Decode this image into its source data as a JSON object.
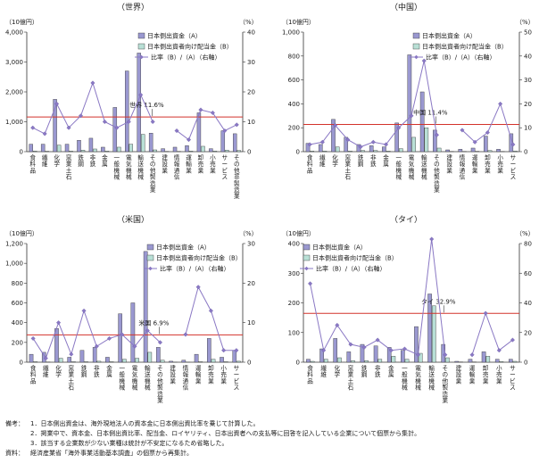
{
  "colors": {
    "funds": "#9a98d0",
    "dividends": "#b9e0d6",
    "ratio": "#8a78c4",
    "refline": "#d3332b",
    "axis": "#333333"
  },
  "categories": [
    "食料品",
    "繊維",
    "化学",
    "窯業土石",
    "鉄鋼",
    "非鉄",
    "金属",
    "一般機械",
    "電気機械",
    "輸送機械",
    "その他製造業",
    "建設業",
    "情報通信",
    "運輸業",
    "卸売業",
    "小売業",
    "サービス",
    "その他非製造業"
  ],
  "legend": {
    "funds": "日本側出資金（A）",
    "dividends": "日本側出資者向け配当金（B）",
    "ratio": "比率（B）/（A）（右軸）"
  },
  "notes": {
    "label_notes": "備考：",
    "note1": "1．日本側出資金は、海外現地法人の資本金に日本側出資比率を乗じて計算した。",
    "note2": "2．掲業中で、資本金、日本側出資比率、配当金、ロイヤリティ、日本出資者への支払等に回答を記入している企業について個票から集計。",
    "note3": "3．該当する企業数が少ない業種は統計が不安定になるため省略した。",
    "label_source": "資料：",
    "source": "経済産業省「海外事業活動基本調査」の個票から再集計。"
  },
  "chart_data": [
    {
      "type": "bar",
      "title": "（世界）",
      "ylabel": "（10億円）",
      "y2label": "（%）",
      "ylim": [
        0,
        4000
      ],
      "yticks": [
        0,
        1000,
        2000,
        3000,
        4000
      ],
      "y2lim": [
        0,
        40
      ],
      "y2ticks": [
        0,
        10,
        20,
        30,
        40
      ],
      "ref_value": 11.6,
      "ref_label": "世界 11.6%",
      "categories": [
        "食料品",
        "繊維",
        "化学",
        "窯業土石",
        "鉄鋼",
        "非鉄",
        "金属",
        "一般機械",
        "電気機械",
        "輸送機械",
        "その他製造業",
        "建設業",
        "情報通信",
        "運輸業",
        "卸売業",
        "小売業",
        "サービス",
        "その他非製造業"
      ],
      "series": [
        {
          "name": "日本側出資金（A）",
          "values": [
            250,
            250,
            1750,
            250,
            380,
            450,
            150,
            1480,
            2700,
            3300,
            620,
            100,
            150,
            200,
            1300,
            100,
            700,
            600
          ]
        },
        {
          "name": "日本側出資者向け配当金（B）",
          "values": [
            20,
            15,
            220,
            20,
            50,
            90,
            20,
            150,
            250,
            580,
            60,
            10,
            10,
            20,
            180,
            20,
            50,
            40
          ]
        },
        {
          "name": "比率（B）/（A）（右軸）",
          "values": [
            8,
            6,
            16,
            8,
            12,
            23,
            10,
            8,
            10,
            19,
            10,
            null,
            7,
            4,
            14,
            13,
            7,
            9
          ]
        }
      ]
    },
    {
      "type": "bar",
      "title": "（中国）",
      "ylabel": "（10億円）",
      "y2label": "（%）",
      "ylim": [
        0,
        1000
      ],
      "yticks": [
        0,
        200,
        400,
        600,
        800,
        1000
      ],
      "y2lim": [
        0,
        50
      ],
      "y2ticks": [
        0,
        10,
        20,
        30,
        40,
        50
      ],
      "ref_value": 11.4,
      "ref_label": "中国 11.4%",
      "categories": [
        "食料品",
        "繊維",
        "化学",
        "窯業土石",
        "鉄鋼",
        "非鉄",
        "金属",
        "一般機械",
        "電気機械",
        "輸送機械",
        "その他製造業",
        "建設業",
        "情報通信",
        "運輸業",
        "卸売業",
        "小売業",
        "サービス"
      ],
      "series": [
        {
          "name": "日本側出資金（A）",
          "values": [
            70,
            60,
            270,
            120,
            60,
            50,
            40,
            240,
            810,
            500,
            180,
            15,
            20,
            30,
            130,
            20,
            150
          ]
        },
        {
          "name": "日本側出資者向け配当金（B）",
          "values": [
            5,
            5,
            40,
            5,
            10,
            10,
            5,
            25,
            120,
            200,
            30,
            2,
            2,
            3,
            10,
            2,
            5
          ]
        },
        {
          "name": "比率（B）/（A）（右軸）",
          "values": [
            3,
            4,
            11,
            5,
            2,
            4,
            3,
            10,
            15,
            38,
            7,
            null,
            9,
            4,
            8,
            20,
            3
          ]
        }
      ]
    },
    {
      "type": "bar",
      "title": "（米国）",
      "ylabel": "（10億円）",
      "y2label": "（%）",
      "ylim": [
        0,
        1200
      ],
      "yticks": [
        0,
        200,
        400,
        600,
        800,
        1000,
        1200
      ],
      "y2lim": [
        0,
        30
      ],
      "y2ticks": [
        0,
        10,
        20,
        30
      ],
      "ref_value": 6.9,
      "ref_label": "米国 6.9%",
      "categories": [
        "食料品",
        "繊維",
        "化学",
        "窯業土石",
        "鉄鋼",
        "非鉄",
        "金属",
        "一般機械",
        "電気機械",
        "輸送機械",
        "その他製造業",
        "建設業",
        "情報通信",
        "運輸業",
        "卸売業",
        "小売業",
        "サービス"
      ],
      "series": [
        {
          "name": "日本側出資金（A）",
          "values": [
            80,
            100,
            340,
            50,
            120,
            150,
            50,
            490,
            600,
            1120,
            150,
            10,
            20,
            80,
            240,
            50,
            120
          ]
        },
        {
          "name": "日本側出資者向け配当金（B）",
          "values": [
            5,
            2,
            40,
            5,
            5,
            10,
            5,
            30,
            40,
            100,
            20,
            1,
            1,
            5,
            30,
            5,
            10
          ]
        },
        {
          "name": "比率（B）/（A）（右軸）",
          "values": [
            6,
            1,
            10,
            2,
            13,
            4,
            6,
            7,
            4,
            8,
            5,
            null,
            7,
            19,
            13,
            3,
            3
          ]
        }
      ]
    },
    {
      "type": "bar",
      "title": "（タイ）",
      "ylabel": "（10億円）",
      "y2label": "（%）",
      "ylim": [
        0,
        400
      ],
      "yticks": [
        0,
        100,
        200,
        300,
        400
      ],
      "y2lim": [
        0,
        80
      ],
      "y2ticks": [
        0,
        20,
        40,
        60,
        80
      ],
      "ref_value": 32.9,
      "ref_label": "タイ 32.9%",
      "categories": [
        "食料品",
        "繊維",
        "化学",
        "窯業土石",
        "鉄鋼",
        "非鉄",
        "金属",
        "一般機械",
        "電気機械",
        "輸送機械",
        "その他製造業",
        "建設業",
        "運輸業",
        "卸売業",
        "小売業",
        "サービス"
      ],
      "series": [
        {
          "name": "日本側出資金（A）",
          "values": [
            10,
            45,
            80,
            35,
            60,
            55,
            50,
            40,
            120,
            230,
            60,
            3,
            10,
            35,
            10,
            10
          ]
        },
        {
          "name": "日本側出資者向け配当金（B）",
          "values": [
            3,
            10,
            15,
            5,
            5,
            10,
            20,
            10,
            30,
            190,
            15,
            1,
            1,
            20,
            2,
            3
          ]
        },
        {
          "name": "比率（B）/（A）（右軸）",
          "values": [
            53,
            8,
            25,
            12,
            10,
            15,
            8,
            9,
            5,
            83,
            5,
            null,
            5,
            33,
            8,
            15
          ]
        }
      ]
    }
  ]
}
